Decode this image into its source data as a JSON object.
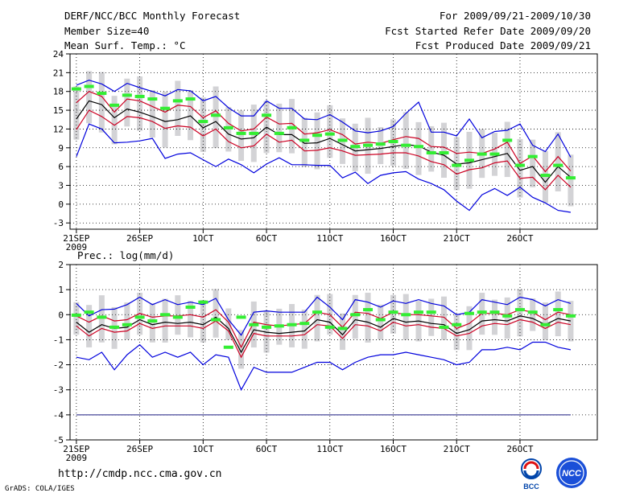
{
  "header": {
    "title": "DERF/NCC/BCC Monthly Forecast",
    "member_size": "Member Size=40",
    "variable": "Mean Surf. Temp.: °C",
    "period": "For 2009/09/21-2009/10/30",
    "started": "Fcst Started Refer Date 2009/09/20",
    "produced": "Fcst Produced Date 2009/09/21"
  },
  "precip_label": "Prec.: log(mm/d)",
  "footer": {
    "url": "http://cmdp.ncc.cma.gov.cn",
    "credit": "GrADS: COLA/IGES",
    "logo1": "BCC",
    "logo2": "NCC"
  },
  "colors": {
    "max": "#0000dd",
    "min": "#0000dd",
    "band": "#cc0022",
    "mean": "#000000",
    "box": "#d3d3d6",
    "obs": "#33ee33",
    "grid": "#000000"
  },
  "x_ticks": [
    "21SEP",
    "26SEP",
    "1OCT",
    "6OCT",
    "11OCT",
    "16OCT",
    "21OCT",
    "26OCT"
  ],
  "x_year": "2009",
  "chart_data": [
    {
      "type": "line",
      "title": "Mean Surf. Temp.: °C",
      "ylim": [
        -4,
        24
      ],
      "yticks": [
        -3,
        0,
        3,
        6,
        9,
        12,
        15,
        18,
        21,
        24
      ],
      "days": 40,
      "series": [
        {
          "name": "max",
          "values": [
            19.0,
            19.8,
            19.2,
            18.0,
            19.3,
            18.6,
            18.0,
            17.3,
            18.3,
            18.1,
            16.5,
            17.2,
            15.4,
            14.1,
            14.1,
            16.5,
            15.3,
            15.3,
            13.6,
            13.5,
            14.3,
            13.1,
            11.7,
            11.4,
            11.7,
            12.4,
            14.5,
            16.3,
            11.5,
            11.5,
            10.9,
            13.6,
            10.6,
            11.6,
            11.8,
            12.8,
            9.4,
            8.4,
            11.2,
            7.5
          ]
        },
        {
          "name": "upper",
          "values": [
            16.2,
            18.0,
            17.2,
            14.7,
            16.8,
            16.5,
            15.6,
            14.7,
            15.8,
            15.6,
            13.8,
            14.9,
            12.9,
            11.7,
            12.0,
            13.9,
            12.8,
            12.9,
            11.2,
            11.4,
            11.9,
            11.1,
            9.6,
            9.9,
            9.7,
            10.3,
            10.8,
            10.5,
            9.2,
            9.1,
            8.1,
            8.3,
            8.1,
            8.8,
            9.9,
            6.5,
            7.7,
            5.2,
            7.6,
            5.3
          ]
        },
        {
          "name": "mean",
          "values": [
            13.6,
            16.5,
            15.9,
            13.8,
            15.2,
            14.7,
            14.0,
            13.2,
            13.5,
            14.1,
            12.2,
            13.2,
            11.2,
            10.4,
            10.6,
            12.3,
            11.1,
            11.1,
            9.7,
            9.8,
            10.5,
            9.5,
            8.5,
            8.7,
            8.9,
            9.2,
            9.5,
            9.3,
            8.3,
            7.8,
            6.4,
            6.6,
            7.1,
            7.6,
            8.1,
            5.4,
            6.0,
            3.5,
            6.0,
            4.3
          ]
        },
        {
          "name": "lower",
          "values": [
            11.9,
            15.0,
            14.0,
            12.6,
            14.0,
            13.8,
            13.2,
            12.1,
            12.5,
            12.3,
            10.9,
            12.0,
            10.0,
            9.0,
            9.3,
            11.2,
            9.9,
            10.2,
            8.5,
            8.6,
            9.0,
            8.5,
            7.8,
            7.9,
            8.0,
            8.2,
            8.2,
            7.7,
            6.8,
            6.3,
            4.8,
            5.5,
            5.8,
            6.6,
            6.9,
            4.1,
            4.3,
            2.3,
            4.6,
            2.7
          ]
        },
        {
          "name": "min",
          "values": [
            7.6,
            12.8,
            12.0,
            9.8,
            9.9,
            10.1,
            10.5,
            7.3,
            8.0,
            8.2,
            7.1,
            6.0,
            7.2,
            6.3,
            5.0,
            6.4,
            7.4,
            6.3,
            6.3,
            6.2,
            6.2,
            4.2,
            5.1,
            3.3,
            4.6,
            5.0,
            5.2,
            4.0,
            3.3,
            2.3,
            0.5,
            -1.0,
            1.5,
            2.5,
            1.4,
            2.7,
            1.1,
            0.2,
            -1.0,
            -1.3
          ]
        },
        {
          "name": "obs",
          "values": [
            18.4,
            18.8,
            17.7,
            15.8,
            17.4,
            17.2,
            16.8,
            15.3,
            16.5,
            16.8,
            13.2,
            14.2,
            12.2,
            11.3,
            11.3,
            14.2,
            11.3,
            12.2,
            10.2,
            11.0,
            11.2,
            10.2,
            9.2,
            9.4,
            9.6,
            10.0,
            9.4,
            9.2,
            8.2,
            8.2,
            6.2,
            7.0,
            8.0,
            8.0,
            10.2,
            6.2,
            7.6,
            4.6,
            6.2,
            4.2
          ]
        }
      ]
    },
    {
      "type": "line",
      "title": "Prec.: log(mm/d)",
      "ylim": [
        -5,
        2
      ],
      "yticks": [
        -5,
        -4,
        -3,
        -2,
        -1,
        0,
        1,
        2
      ],
      "days": 40,
      "series": [
        {
          "name": "max",
          "values": [
            0.45,
            -0.05,
            0.2,
            0.22,
            0.4,
            0.7,
            0.4,
            0.6,
            0.4,
            0.5,
            0.4,
            0.65,
            -0.2,
            -0.82,
            0.1,
            0.15,
            0.1,
            0.1,
            0.1,
            0.7,
            0.3,
            -0.2,
            0.6,
            0.5,
            0.3,
            0.55,
            0.45,
            0.6,
            0.45,
            0.35,
            0.0,
            0.1,
            0.6,
            0.5,
            0.4,
            0.7,
            0.6,
            0.35,
            0.6,
            0.45
          ]
        },
        {
          "name": "upper",
          "values": [
            -0.05,
            -0.3,
            -0.05,
            -0.25,
            -0.2,
            0.05,
            -0.1,
            -0.05,
            -0.05,
            0.0,
            -0.1,
            0.2,
            -0.3,
            -1.3,
            -0.3,
            -0.4,
            -0.45,
            -0.4,
            -0.35,
            0.1,
            0.0,
            -0.5,
            0.1,
            0.05,
            -0.15,
            0.1,
            0.0,
            0.0,
            -0.05,
            -0.1,
            -0.55,
            -0.35,
            0.05,
            0.05,
            0.0,
            0.2,
            0.1,
            -0.2,
            0.1,
            0.0
          ]
        },
        {
          "name": "mean",
          "values": [
            -0.3,
            -0.7,
            -0.4,
            -0.55,
            -0.5,
            -0.2,
            -0.4,
            -0.3,
            -0.35,
            -0.3,
            -0.4,
            -0.1,
            -0.55,
            -1.5,
            -0.6,
            -0.7,
            -0.75,
            -0.7,
            -0.65,
            -0.2,
            -0.3,
            -0.8,
            -0.2,
            -0.3,
            -0.5,
            -0.15,
            -0.3,
            -0.25,
            -0.35,
            -0.4,
            -0.75,
            -0.6,
            -0.25,
            -0.2,
            -0.25,
            -0.05,
            -0.15,
            -0.4,
            -0.15,
            -0.25
          ]
        },
        {
          "name": "lower",
          "values": [
            -0.45,
            -0.85,
            -0.55,
            -0.7,
            -0.65,
            -0.35,
            -0.55,
            -0.45,
            -0.45,
            -0.45,
            -0.55,
            -0.25,
            -0.65,
            -1.7,
            -0.75,
            -0.85,
            -0.85,
            -0.85,
            -0.8,
            -0.4,
            -0.45,
            -0.95,
            -0.4,
            -0.45,
            -0.65,
            -0.3,
            -0.45,
            -0.4,
            -0.5,
            -0.55,
            -0.85,
            -0.75,
            -0.45,
            -0.35,
            -0.4,
            -0.2,
            -0.3,
            -0.55,
            -0.3,
            -0.4
          ]
        },
        {
          "name": "min",
          "values": [
            -1.7,
            -1.8,
            -1.5,
            -2.2,
            -1.6,
            -1.2,
            -1.7,
            -1.5,
            -1.7,
            -1.5,
            -2.0,
            -1.6,
            -1.7,
            -3.0,
            -2.1,
            -2.3,
            -2.3,
            -2.3,
            -2.1,
            -1.9,
            -1.9,
            -2.2,
            -1.9,
            -1.7,
            -1.6,
            -1.6,
            -1.5,
            -1.6,
            -1.7,
            -1.8,
            -2.0,
            -1.9,
            -1.4,
            -1.4,
            -1.3,
            -1.4,
            -1.1,
            -1.1,
            -1.3,
            -1.4
          ]
        },
        {
          "name": "floor",
          "values": [
            -4.0,
            -4.0
          ]
        },
        {
          "name": "obs",
          "values": [
            -0.02,
            0.1,
            -0.1,
            -0.5,
            -0.4,
            -0.1,
            -0.25,
            0.0,
            -0.1,
            0.3,
            0.5,
            -0.2,
            -1.3,
            -0.1,
            -0.4,
            -0.5,
            -0.45,
            -0.4,
            -0.35,
            0.1,
            -0.5,
            -0.55,
            0.0,
            0.2,
            -0.2,
            0.1,
            0.0,
            0.1,
            0.1,
            -0.5,
            -0.4,
            0.05,
            0.1,
            0.1,
            -0.05,
            0.2,
            0.1,
            -0.4,
            0.2,
            -0.05
          ]
        }
      ]
    }
  ]
}
